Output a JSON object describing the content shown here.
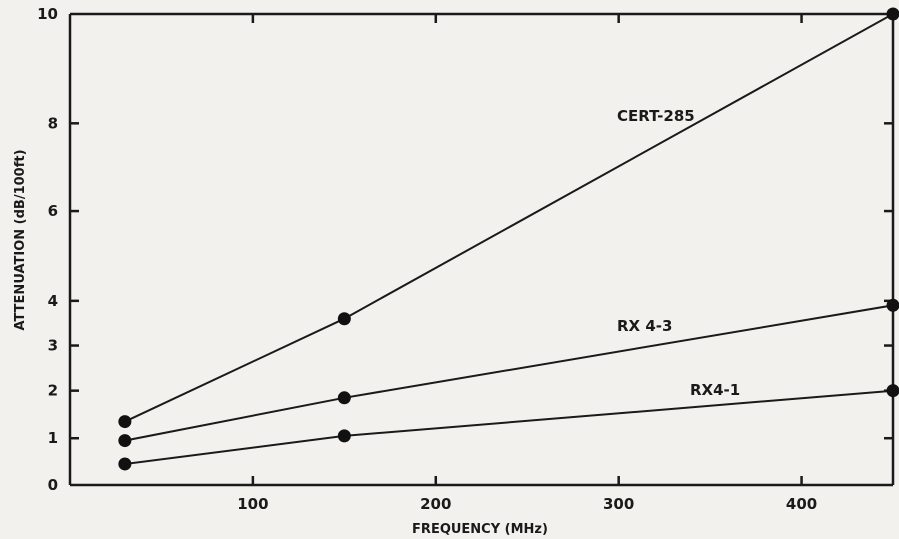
{
  "chart_data": {
    "type": "line",
    "title": "",
    "xlabel": "FREQUENCY (MHz)",
    "ylabel": "ATTENUATION (dB/100ft)",
    "xlim": [
      0,
      450
    ],
    "ylim": [
      0,
      10
    ],
    "y_scale": "log-like (nonuniform)",
    "x_ticks": [
      100,
      200,
      300,
      400
    ],
    "x_tick_labels": [
      "100",
      "200",
      "300",
      "400"
    ],
    "y_ticks": [
      0,
      1,
      2,
      3,
      4,
      6,
      8,
      10
    ],
    "y_tick_labels": [
      "0",
      "1",
      "2",
      "3",
      "4",
      "6",
      "8",
      "10"
    ],
    "grid": false,
    "legend": "none (series labelled inline on lines)",
    "series": [
      {
        "name": "CERT-285",
        "x": [
          30,
          150,
          450
        ],
        "y": [
          1.35,
          3.6,
          10
        ]
      },
      {
        "name": "RX 4-3",
        "x": [
          30,
          150,
          450
        ],
        "y": [
          0.95,
          1.85,
          3.9
        ]
      },
      {
        "name": "RX4-1",
        "x": [
          30,
          150,
          450
        ],
        "y": [
          0.45,
          1.05,
          2.0
        ]
      }
    ]
  }
}
